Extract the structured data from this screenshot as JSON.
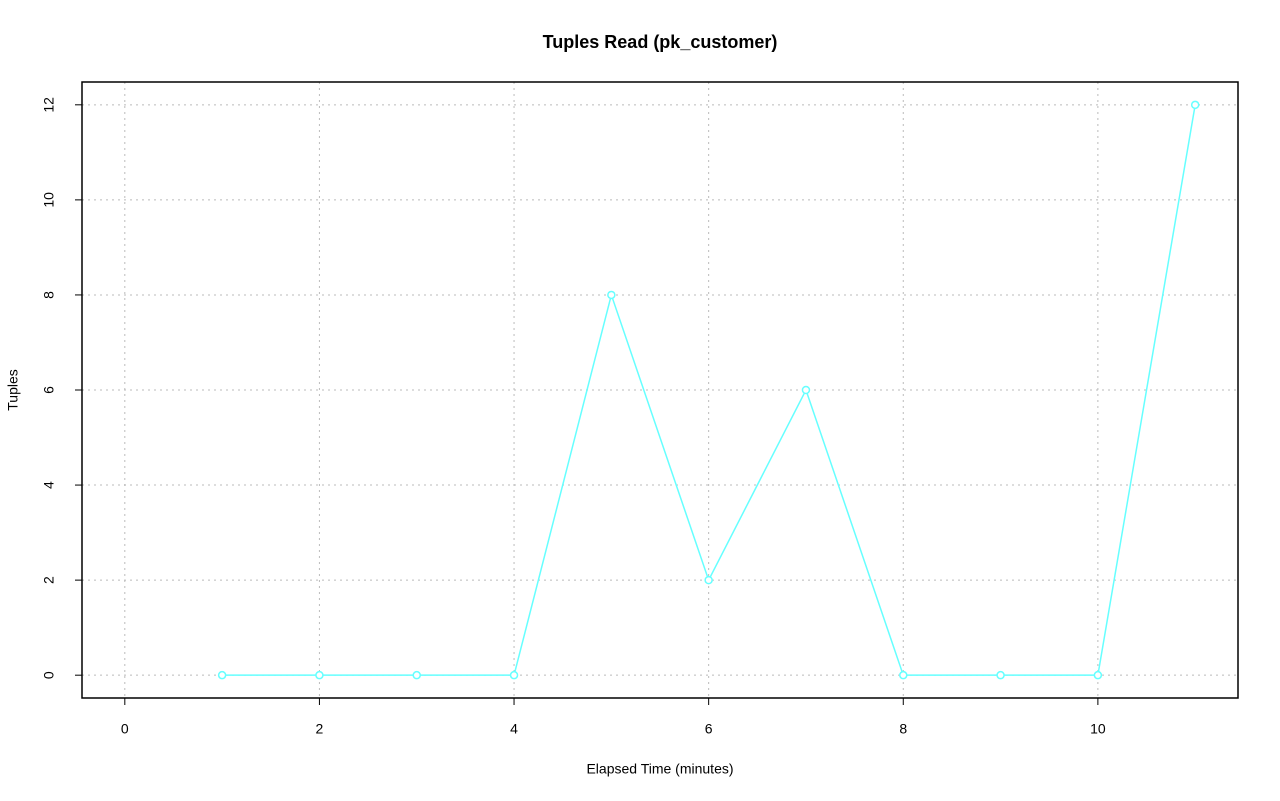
{
  "chart_data": {
    "type": "line",
    "title": "Tuples Read (pk_customer)",
    "x_label": "Elapsed Time (minutes)",
    "y_label": "Tuples",
    "x": [
      1,
      2,
      3,
      4,
      5,
      6,
      7,
      8,
      9,
      10,
      11
    ],
    "series": [
      {
        "name": "Tuples",
        "color": "#66ffff",
        "values": [
          0,
          0,
          0,
          0,
          8,
          2,
          6,
          0,
          0,
          0,
          12
        ]
      }
    ],
    "xlim": [
      -0.44,
      11.44
    ],
    "ylim": [
      -0.48,
      12.48
    ],
    "xticks": [
      0,
      2,
      4,
      6,
      8,
      10
    ],
    "yticks": [
      0,
      2,
      4,
      6,
      8,
      10,
      12
    ],
    "grid": true
  }
}
